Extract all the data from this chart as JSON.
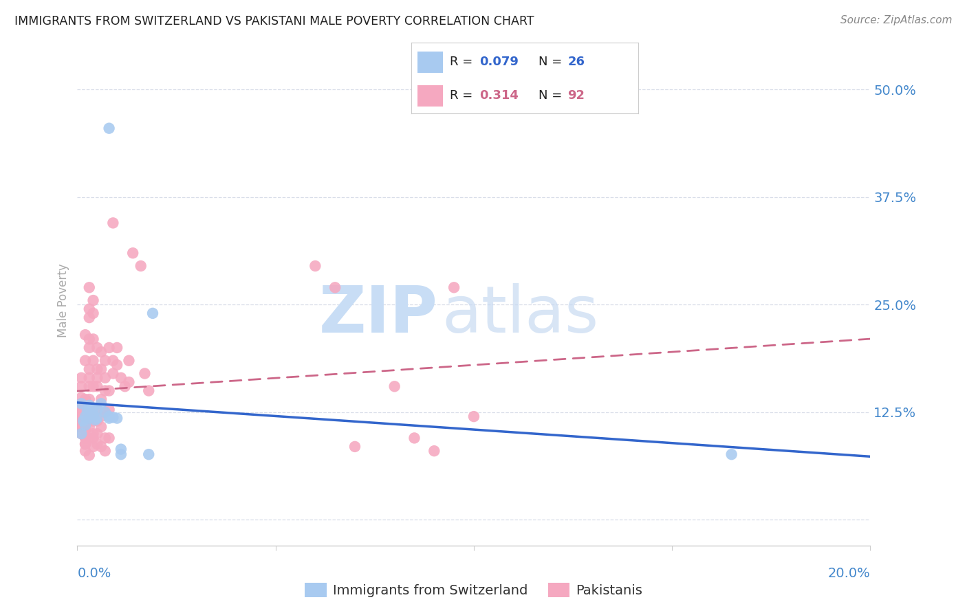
{
  "title": "IMMIGRANTS FROM SWITZERLAND VS PAKISTANI MALE POVERTY CORRELATION CHART",
  "source": "Source: ZipAtlas.com",
  "ylabel": "Male Poverty",
  "xlim": [
    0.0,
    0.2
  ],
  "ylim": [
    -0.03,
    0.54
  ],
  "background_color": "#ffffff",
  "grid_color": "#d8dde8",
  "swiss_color": "#a8caf0",
  "pak_color": "#f5a8c0",
  "swiss_line_color": "#3366cc",
  "pak_line_color": "#cc6688",
  "label_color": "#4488cc",
  "title_color": "#222222",
  "source_color": "#888888",
  "ylabel_color": "#aaaaaa",
  "swiss_R": 0.079,
  "swiss_N": 26,
  "pak_R": 0.314,
  "pak_N": 92,
  "swiss_x": [
    0.001,
    0.001,
    0.0015,
    0.002,
    0.002,
    0.0025,
    0.003,
    0.003,
    0.004,
    0.004,
    0.0045,
    0.005,
    0.005,
    0.006,
    0.007,
    0.008,
    0.008,
    0.009,
    0.01,
    0.011,
    0.011,
    0.018,
    0.019,
    0.008,
    0.003,
    0.165
  ],
  "swiss_y": [
    0.135,
    0.1,
    0.115,
    0.11,
    0.12,
    0.127,
    0.128,
    0.133,
    0.122,
    0.13,
    0.116,
    0.128,
    0.118,
    0.135,
    0.125,
    0.455,
    0.118,
    0.119,
    0.118,
    0.082,
    0.076,
    0.076,
    0.24,
    0.12,
    0.118,
    0.076
  ],
  "pak_x": [
    0.001,
    0.001,
    0.001,
    0.001,
    0.001,
    0.001,
    0.001,
    0.001,
    0.001,
    0.001,
    0.002,
    0.002,
    0.002,
    0.002,
    0.002,
    0.002,
    0.002,
    0.002,
    0.002,
    0.003,
    0.003,
    0.003,
    0.003,
    0.003,
    0.003,
    0.003,
    0.003,
    0.003,
    0.003,
    0.003,
    0.004,
    0.004,
    0.004,
    0.004,
    0.004,
    0.004,
    0.004,
    0.005,
    0.005,
    0.005,
    0.005,
    0.005,
    0.006,
    0.006,
    0.006,
    0.006,
    0.006,
    0.007,
    0.007,
    0.007,
    0.007,
    0.007,
    0.008,
    0.008,
    0.008,
    0.009,
    0.009,
    0.01,
    0.01,
    0.011,
    0.012,
    0.013,
    0.013,
    0.014,
    0.016,
    0.017,
    0.018,
    0.06,
    0.065,
    0.07,
    0.08,
    0.085,
    0.09,
    0.095,
    0.1,
    0.001,
    0.001,
    0.002,
    0.002,
    0.002,
    0.003,
    0.003,
    0.004,
    0.004,
    0.005,
    0.005,
    0.006,
    0.007,
    0.008,
    0.009,
    0.004,
    0.005
  ],
  "pak_y": [
    0.125,
    0.115,
    0.13,
    0.118,
    0.108,
    0.1,
    0.135,
    0.142,
    0.155,
    0.165,
    0.215,
    0.185,
    0.14,
    0.125,
    0.118,
    0.11,
    0.105,
    0.095,
    0.08,
    0.27,
    0.245,
    0.235,
    0.21,
    0.2,
    0.175,
    0.165,
    0.155,
    0.14,
    0.118,
    0.075,
    0.255,
    0.21,
    0.185,
    0.155,
    0.125,
    0.1,
    0.085,
    0.2,
    0.175,
    0.155,
    0.128,
    0.1,
    0.195,
    0.175,
    0.14,
    0.12,
    0.085,
    0.185,
    0.165,
    0.15,
    0.125,
    0.08,
    0.2,
    0.15,
    0.128,
    0.345,
    0.185,
    0.2,
    0.18,
    0.165,
    0.155,
    0.185,
    0.16,
    0.31,
    0.295,
    0.17,
    0.15,
    0.295,
    0.27,
    0.085,
    0.155,
    0.095,
    0.08,
    0.27,
    0.12,
    0.12,
    0.108,
    0.095,
    0.088,
    0.088,
    0.108,
    0.095,
    0.115,
    0.095,
    0.115,
    0.088,
    0.108,
    0.095,
    0.095,
    0.17,
    0.24,
    0.165
  ]
}
